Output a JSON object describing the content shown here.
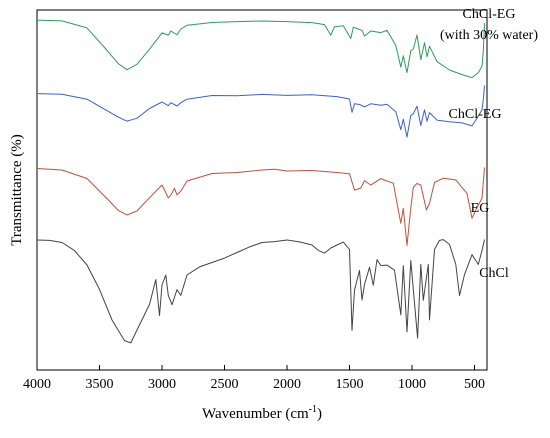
{
  "chart_data": {
    "type": "line",
    "xlabel": "Wavenumber (cm",
    "xlabel_superscript": "-1",
    "xlabel_suffix": ")",
    "ylabel": "Transmittance (%)",
    "xlim": [
      4000,
      400
    ],
    "x_ticks": [
      4000,
      3500,
      3000,
      2500,
      2000,
      1500,
      1000,
      500
    ],
    "grid": false,
    "legend": "inline labels at right end of each trace",
    "series": [
      {
        "name": "ChCl-EG",
        "label_lines": [
          "ChCl-EG",
          "(with 30% water)"
        ],
        "color": "#2e9c5a",
        "points": [
          [
            4000,
            0.0
          ],
          [
            3800,
            0.02
          ],
          [
            3600,
            0.15
          ],
          [
            3450,
            0.55
          ],
          [
            3350,
            0.85
          ],
          [
            3280,
            0.95
          ],
          [
            3200,
            0.85
          ],
          [
            3100,
            0.55
          ],
          [
            3000,
            0.25
          ],
          [
            2950,
            0.3
          ],
          [
            2930,
            0.2
          ],
          [
            2880,
            0.28
          ],
          [
            2850,
            0.18
          ],
          [
            2800,
            0.1
          ],
          [
            2600,
            0.05
          ],
          [
            2400,
            0.03
          ],
          [
            2200,
            0.02
          ],
          [
            2000,
            0.03
          ],
          [
            1800,
            0.05
          ],
          [
            1700,
            0.1
          ],
          [
            1650,
            0.3
          ],
          [
            1620,
            0.12
          ],
          [
            1550,
            0.1
          ],
          [
            1490,
            0.35
          ],
          [
            1470,
            0.15
          ],
          [
            1400,
            0.2
          ],
          [
            1380,
            0.3
          ],
          [
            1330,
            0.2
          ],
          [
            1250,
            0.25
          ],
          [
            1200,
            0.2
          ],
          [
            1130,
            0.5
          ],
          [
            1090,
            0.9
          ],
          [
            1070,
            0.7
          ],
          [
            1040,
            1.0
          ],
          [
            1010,
            0.6
          ],
          [
            990,
            0.55
          ],
          [
            960,
            0.3
          ],
          [
            930,
            0.75
          ],
          [
            900,
            0.45
          ],
          [
            880,
            0.7
          ],
          [
            860,
            0.5
          ],
          [
            800,
            0.8
          ],
          [
            700,
            0.95
          ],
          [
            600,
            1.05
          ],
          [
            520,
            1.1
          ],
          [
            470,
            1.0
          ],
          [
            440,
            0.9
          ],
          [
            430,
            0.6
          ],
          [
            420,
            0.05
          ]
        ],
        "offset": 0
      },
      {
        "name": "ChCl-EG",
        "label_lines": [
          "ChCl-EG"
        ],
        "color": "#3a62c9",
        "points": [
          [
            4000,
            0.0
          ],
          [
            3800,
            0.05
          ],
          [
            3600,
            0.15
          ],
          [
            3450,
            0.45
          ],
          [
            3350,
            0.65
          ],
          [
            3280,
            0.75
          ],
          [
            3200,
            0.65
          ],
          [
            3100,
            0.4
          ],
          [
            3000,
            0.25
          ],
          [
            2950,
            0.35
          ],
          [
            2930,
            0.25
          ],
          [
            2880,
            0.35
          ],
          [
            2850,
            0.25
          ],
          [
            2800,
            0.15
          ],
          [
            2600,
            0.08
          ],
          [
            2400,
            0.06
          ],
          [
            2200,
            0.05
          ],
          [
            2000,
            0.05
          ],
          [
            1800,
            0.06
          ],
          [
            1600,
            0.08
          ],
          [
            1500,
            0.15
          ],
          [
            1480,
            0.5
          ],
          [
            1460,
            0.3
          ],
          [
            1420,
            0.3
          ],
          [
            1380,
            0.35
          ],
          [
            1330,
            0.28
          ],
          [
            1250,
            0.32
          ],
          [
            1200,
            0.28
          ],
          [
            1130,
            0.5
          ],
          [
            1090,
            0.95
          ],
          [
            1070,
            0.7
          ],
          [
            1040,
            1.15
          ],
          [
            1010,
            0.6
          ],
          [
            990,
            0.55
          ],
          [
            960,
            0.35
          ],
          [
            930,
            0.85
          ],
          [
            900,
            0.45
          ],
          [
            880,
            0.75
          ],
          [
            860,
            0.5
          ],
          [
            800,
            0.7
          ],
          [
            700,
            0.75
          ],
          [
            600,
            0.8
          ],
          [
            520,
            0.85
          ],
          [
            470,
            0.6
          ],
          [
            440,
            0.45
          ],
          [
            430,
            0.2
          ],
          [
            420,
            -0.2
          ]
        ],
        "offset": 1
      },
      {
        "name": "EG",
        "label_lines": [
          "EG"
        ],
        "color": "#c0503c",
        "points": [
          [
            4000,
            0.0
          ],
          [
            3800,
            0.05
          ],
          [
            3600,
            0.2
          ],
          [
            3450,
            0.6
          ],
          [
            3350,
            0.85
          ],
          [
            3280,
            0.95
          ],
          [
            3200,
            0.85
          ],
          [
            3100,
            0.6
          ],
          [
            3000,
            0.35
          ],
          [
            2950,
            0.6
          ],
          [
            2930,
            0.55
          ],
          [
            2900,
            0.4
          ],
          [
            2880,
            0.55
          ],
          [
            2850,
            0.45
          ],
          [
            2800,
            0.25
          ],
          [
            2600,
            0.12
          ],
          [
            2400,
            0.08
          ],
          [
            2200,
            0.05
          ],
          [
            2100,
            0.02
          ],
          [
            2000,
            0.05
          ],
          [
            1800,
            0.06
          ],
          [
            1600,
            0.08
          ],
          [
            1500,
            0.12
          ],
          [
            1460,
            0.45
          ],
          [
            1410,
            0.4
          ],
          [
            1380,
            0.25
          ],
          [
            1330,
            0.35
          ],
          [
            1250,
            0.2
          ],
          [
            1200,
            0.25
          ],
          [
            1150,
            0.3
          ],
          [
            1090,
            1.1
          ],
          [
            1070,
            0.8
          ],
          [
            1040,
            1.55
          ],
          [
            1010,
            0.8
          ],
          [
            990,
            0.4
          ],
          [
            960,
            0.3
          ],
          [
            930,
            0.35
          ],
          [
            885,
            0.85
          ],
          [
            860,
            0.7
          ],
          [
            820,
            0.3
          ],
          [
            750,
            0.2
          ],
          [
            650,
            0.25
          ],
          [
            560,
            0.5
          ],
          [
            520,
            1.0
          ],
          [
            490,
            0.85
          ],
          [
            440,
            0.6
          ],
          [
            420,
            0.0
          ]
        ],
        "offset": 2
      },
      {
        "name": "ChCl",
        "label_lines": [
          "ChCl"
        ],
        "color": "#444444",
        "points": [
          [
            4000,
            0.0
          ],
          [
            3900,
            0.02
          ],
          [
            3800,
            0.05
          ],
          [
            3700,
            0.2
          ],
          [
            3600,
            0.5
          ],
          [
            3500,
            1.0
          ],
          [
            3400,
            1.6
          ],
          [
            3300,
            2.0
          ],
          [
            3250,
            2.05
          ],
          [
            3200,
            1.8
          ],
          [
            3100,
            1.3
          ],
          [
            3050,
            0.8
          ],
          [
            3020,
            1.5
          ],
          [
            3000,
            0.9
          ],
          [
            2970,
            0.7
          ],
          [
            2950,
            1.1
          ],
          [
            2920,
            1.3
          ],
          [
            2880,
            1.0
          ],
          [
            2850,
            1.1
          ],
          [
            2800,
            0.7
          ],
          [
            2700,
            0.55
          ],
          [
            2600,
            0.45
          ],
          [
            2500,
            0.35
          ],
          [
            2400,
            0.25
          ],
          [
            2300,
            0.15
          ],
          [
            2200,
            0.05
          ],
          [
            2100,
            0.02
          ],
          [
            2000,
            0.0
          ],
          [
            1900,
            0.05
          ],
          [
            1800,
            0.1
          ],
          [
            1750,
            0.2
          ],
          [
            1700,
            0.25
          ],
          [
            1650,
            0.15
          ],
          [
            1600,
            0.1
          ],
          [
            1550,
            0.05
          ],
          [
            1500,
            0.2
          ],
          [
            1480,
            1.8
          ],
          [
            1460,
            1.0
          ],
          [
            1420,
            0.6
          ],
          [
            1400,
            1.2
          ],
          [
            1380,
            0.9
          ],
          [
            1340,
            0.55
          ],
          [
            1310,
            0.9
          ],
          [
            1280,
            0.4
          ],
          [
            1250,
            0.5
          ],
          [
            1200,
            0.5
          ],
          [
            1140,
            0.6
          ],
          [
            1090,
            1.5
          ],
          [
            1070,
            0.5
          ],
          [
            1040,
            1.85
          ],
          [
            1010,
            0.4
          ],
          [
            990,
            1.0
          ],
          [
            955,
            1.95
          ],
          [
            930,
            0.5
          ],
          [
            910,
            1.2
          ],
          [
            870,
            0.5
          ],
          [
            860,
            1.6
          ],
          [
            820,
            0.2
          ],
          [
            780,
            0.0
          ],
          [
            750,
            0.0
          ],
          [
            700,
            0.1
          ],
          [
            650,
            0.5
          ],
          [
            620,
            1.1
          ],
          [
            580,
            0.7
          ],
          [
            520,
            0.3
          ],
          [
            470,
            0.5
          ],
          [
            440,
            0.2
          ],
          [
            420,
            0.0
          ]
        ],
        "offset": 3
      }
    ]
  }
}
